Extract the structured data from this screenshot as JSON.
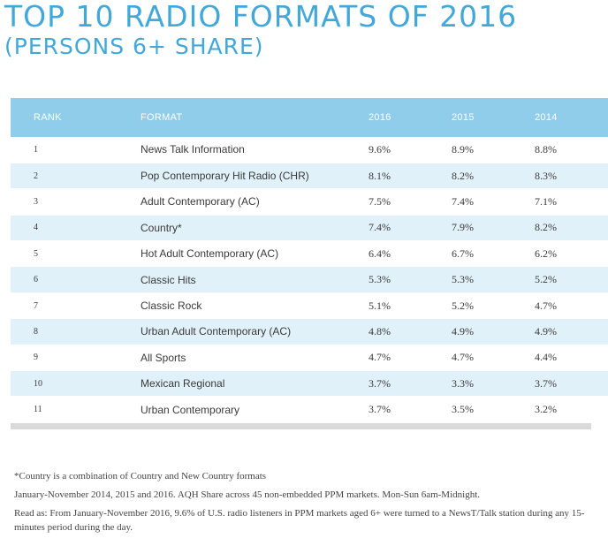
{
  "header": {
    "title": "TOP 10 RADIO FORMATS OF 2016",
    "subtitle": "(PERSONS 6+ SHARE)"
  },
  "colors": {
    "title": "#42a7d9",
    "header_row": "#8fcdea",
    "stripe": "#e1f1f9",
    "bottom_bar": "#d9d9d9"
  },
  "table": {
    "columns": [
      "RANK",
      "FORMAT",
      "2016",
      "2015",
      "2014"
    ],
    "rows": [
      {
        "rank": "1",
        "format": "News Talk Information",
        "y2016": "9.6%",
        "y2015": "8.9%",
        "y2014": "8.8%"
      },
      {
        "rank": "2",
        "format": "Pop Contemporary Hit Radio (CHR)",
        "y2016": "8.1%",
        "y2015": "8.2%",
        "y2014": "8.3%"
      },
      {
        "rank": "3",
        "format": "Adult Contemporary (AC)",
        "y2016": "7.5%",
        "y2015": "7.4%",
        "y2014": "7.1%"
      },
      {
        "rank": "4",
        "format": "Country*",
        "y2016": "7.4%",
        "y2015": "7.9%",
        "y2014": "8.2%"
      },
      {
        "rank": "5",
        "format": "Hot Adult Contemporary (AC)",
        "y2016": "6.4%",
        "y2015": "6.7%",
        "y2014": "6.2%"
      },
      {
        "rank": "6",
        "format": "Classic Hits",
        "y2016": "5.3%",
        "y2015": "5.3%",
        "y2014": "5.2%"
      },
      {
        "rank": "7",
        "format": "Classic Rock",
        "y2016": "5.1%",
        "y2015": "5.2%",
        "y2014": "4.7%"
      },
      {
        "rank": "8",
        "format": "Urban Adult Contemporary (AC)",
        "y2016": "4.8%",
        "y2015": "4.9%",
        "y2014": "4.9%"
      },
      {
        "rank": "9",
        "format": "All Sports",
        "y2016": "4.7%",
        "y2015": "4.7%",
        "y2014": "4.4%"
      },
      {
        "rank": "10",
        "format": "Mexican Regional",
        "y2016": "3.7%",
        "y2015": "3.3%",
        "y2014": "3.7%"
      },
      {
        "rank": "11",
        "format": "Urban Contemporary",
        "y2016": "3.7%",
        "y2015": "3.5%",
        "y2014": "3.2%"
      }
    ]
  },
  "notes": {
    "footnote": "*Country is a combination of Country and New Country formats",
    "source": "January-November 2014, 2015 and 2016. AQH Share across 45 non-embedded PPM markets. Mon-Sun 6am-Midnight.",
    "read_as": "Read as: From January-November 2016, 9.6% of U.S. radio listeners in PPM markets aged 6+ were turned to a NewsT/Talk station during any 15-minutes period during the day."
  }
}
